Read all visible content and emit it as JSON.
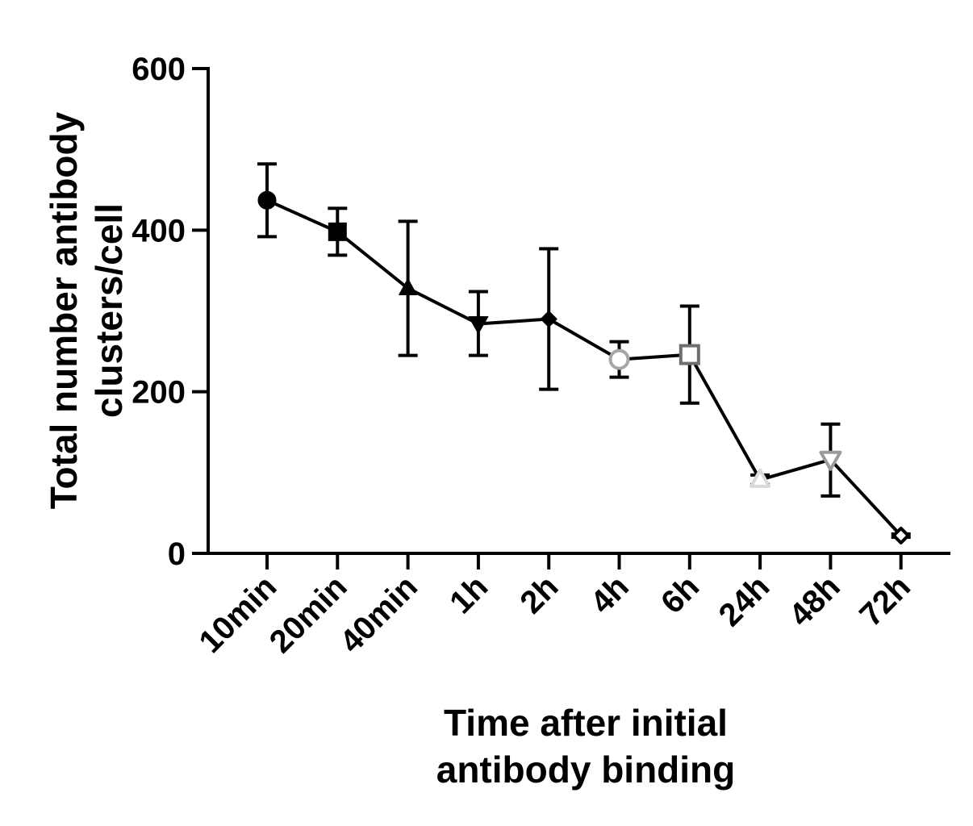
{
  "chart_data": {
    "type": "line",
    "title": "",
    "xlabel": [
      "Time after initial",
      "antibody binding"
    ],
    "ylabel": [
      "Total number antibody",
      "clusters/cell"
    ],
    "categories": [
      "10min",
      "20min",
      "40min",
      "1h",
      "2h",
      "4h",
      "6h",
      "24h",
      "48h",
      "72h"
    ],
    "yticks": [
      "0",
      "200",
      "400",
      "600"
    ],
    "ylim": [
      0,
      600
    ],
    "grid": false,
    "legend": "none",
    "series": [
      {
        "values": [
          437,
          398,
          328,
          284,
          290,
          240,
          246,
          91,
          116,
          22
        ],
        "error_low": [
          392,
          369,
          245,
          245,
          203,
          218,
          186,
          85,
          71,
          20
        ],
        "error_high": [
          482,
          427,
          411,
          324,
          377,
          262,
          306,
          97,
          160,
          24
        ],
        "markers": [
          "circle",
          "square",
          "triangle-up",
          "triangle-down",
          "diamond",
          "circle-open",
          "square-open",
          "triangle-up-open",
          "triangle-down-open",
          "diamond-open"
        ],
        "marker_colors": [
          "#000000",
          "#000000",
          "#000000",
          "#000000",
          "#000000",
          "#a6a6a6",
          "#6e6e6e",
          "#d9d9d9",
          "#9b9b9b",
          "#000000"
        ],
        "line_color": "#000000"
      }
    ]
  }
}
